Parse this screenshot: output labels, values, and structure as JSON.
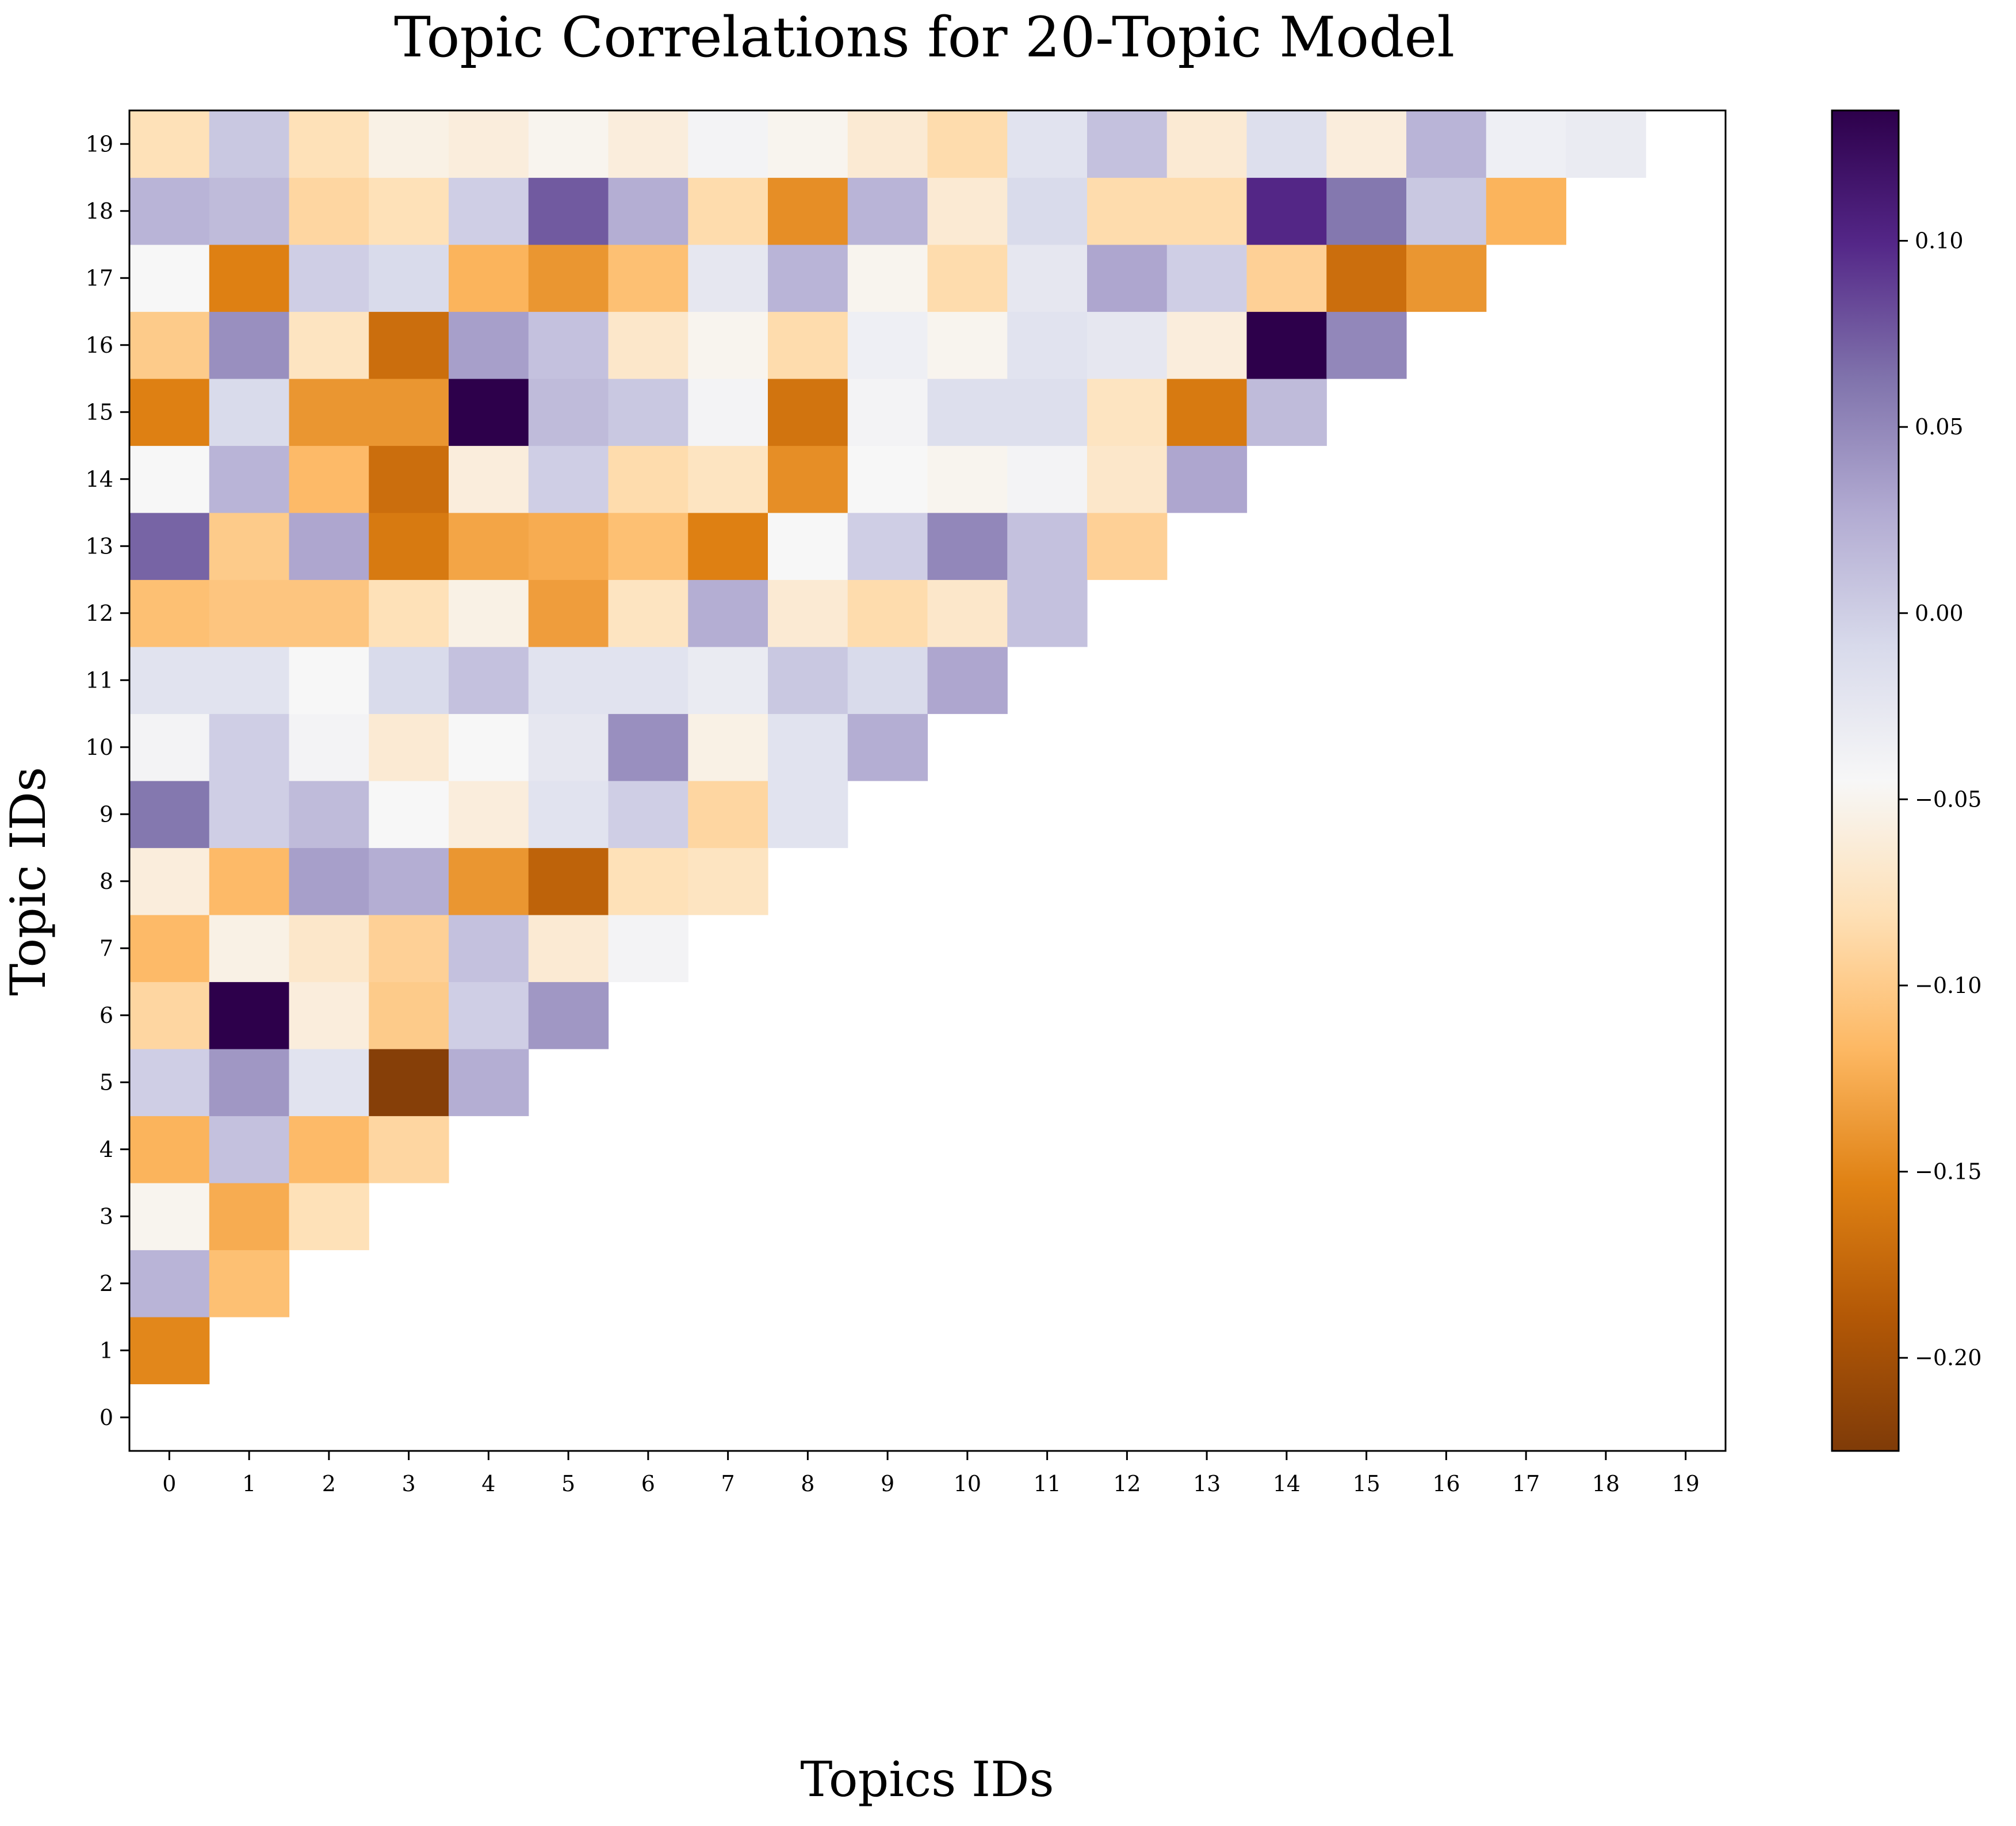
{
  "chart_data": {
    "type": "heatmap",
    "title": "Topic Correlations for 20-Topic Model",
    "xlabel": "Topics IDs",
    "ylabel": "Topic IDs",
    "x_ticks": [
      "0",
      "1",
      "2",
      "3",
      "4",
      "5",
      "6",
      "7",
      "8",
      "9",
      "10",
      "11",
      "12",
      "13",
      "14",
      "15",
      "16",
      "17",
      "18",
      "19"
    ],
    "y_ticks": [
      "0",
      "1",
      "2",
      "3",
      "4",
      "5",
      "6",
      "7",
      "8",
      "9",
      "10",
      "11",
      "12",
      "13",
      "14",
      "15",
      "16",
      "17",
      "18",
      "19"
    ],
    "colormap": "PuOr",
    "vmin": -0.225,
    "vmax": 0.135,
    "colorbar_ticks": [
      {
        "value": 0.1,
        "label": "0.10"
      },
      {
        "value": 0.05,
        "label": "0.05"
      },
      {
        "value": 0.0,
        "label": "0.00"
      },
      {
        "value": -0.05,
        "label": "−0.05"
      },
      {
        "value": -0.1,
        "label": "−0.10"
      },
      {
        "value": -0.15,
        "label": "−0.15"
      },
      {
        "value": -0.2,
        "label": "−0.20"
      }
    ],
    "masked": "upper triangle and diagonal (blank)",
    "rows": [
      {
        "row": 1,
        "values": [
          -0.15
        ]
      },
      {
        "row": 2,
        "values": [
          0.02,
          -0.11
        ]
      },
      {
        "row": 3,
        "values": [
          -0.05,
          -0.125,
          -0.08
        ]
      },
      {
        "row": 4,
        "values": [
          -0.12,
          0.01,
          -0.115,
          -0.09
        ]
      },
      {
        "row": 5,
        "values": [
          0.0,
          0.04,
          -0.02,
          -0.22,
          0.025
        ]
      },
      {
        "row": 6,
        "values": [
          -0.09,
          0.135,
          -0.06,
          -0.1,
          0.0,
          0.04
        ]
      },
      {
        "row": 7,
        "values": [
          -0.115,
          -0.055,
          -0.07,
          -0.095,
          0.01,
          -0.065,
          -0.04
        ]
      },
      {
        "row": 8,
        "values": [
          -0.06,
          -0.115,
          0.035,
          0.025,
          -0.14,
          -0.18,
          -0.08,
          -0.075
        ]
      },
      {
        "row": 9,
        "values": [
          0.06,
          0.0,
          0.015,
          -0.045,
          -0.06,
          -0.02,
          0.0,
          -0.09,
          -0.02
        ]
      },
      {
        "row": 10,
        "values": [
          -0.04,
          0.0,
          -0.04,
          -0.065,
          -0.045,
          -0.025,
          0.045,
          -0.055,
          -0.02,
          0.025
        ]
      },
      {
        "row": 11,
        "values": [
          -0.02,
          -0.02,
          -0.045,
          -0.01,
          0.01,
          -0.02,
          -0.02,
          -0.03,
          0.005,
          -0.01,
          0.03
        ]
      },
      {
        "row": 12,
        "values": [
          -0.11,
          -0.105,
          -0.105,
          -0.08,
          -0.055,
          -0.135,
          -0.075,
          0.025,
          -0.065,
          -0.085,
          -0.07,
          0.01
        ]
      },
      {
        "row": 13,
        "values": [
          0.07,
          -0.1,
          0.03,
          -0.16,
          -0.13,
          -0.125,
          -0.11,
          -0.155,
          -0.045,
          0.0,
          0.05,
          0.01,
          -0.095
        ]
      },
      {
        "row": 14,
        "values": [
          -0.045,
          0.02,
          -0.115,
          -0.17,
          -0.06,
          0.0,
          -0.085,
          -0.075,
          -0.145,
          -0.045,
          -0.05,
          -0.04,
          -0.07,
          0.03
        ]
      },
      {
        "row": 15,
        "values": [
          -0.155,
          -0.01,
          -0.14,
          -0.14,
          0.135,
          0.015,
          0.005,
          -0.04,
          -0.165,
          -0.04,
          -0.015,
          -0.015,
          -0.075,
          -0.16,
          0.015
        ]
      },
      {
        "row": 16,
        "values": [
          -0.1,
          0.045,
          -0.075,
          -0.17,
          0.035,
          0.01,
          -0.07,
          -0.05,
          -0.085,
          -0.035,
          -0.05,
          -0.02,
          -0.025,
          -0.06,
          0.135,
          0.05
        ]
      },
      {
        "row": 17,
        "values": [
          -0.045,
          -0.155,
          0.0,
          -0.01,
          -0.12,
          -0.14,
          -0.11,
          -0.025,
          0.02,
          -0.05,
          -0.085,
          -0.025,
          0.03,
          0.0,
          -0.095,
          -0.17,
          -0.14
        ]
      },
      {
        "row": 18,
        "values": [
          0.02,
          0.015,
          -0.09,
          -0.08,
          0.0,
          0.075,
          0.025,
          -0.085,
          -0.145,
          0.02,
          -0.065,
          -0.01,
          -0.085,
          -0.085,
          0.1,
          0.06,
          0.005,
          -0.12
        ]
      },
      {
        "row": 19,
        "values": [
          -0.08,
          0.005,
          -0.08,
          -0.055,
          -0.06,
          -0.05,
          -0.06,
          -0.04,
          -0.05,
          -0.065,
          -0.085,
          -0.02,
          0.01,
          -0.065,
          -0.015,
          -0.06,
          0.02,
          -0.035,
          -0.03
        ]
      }
    ]
  }
}
